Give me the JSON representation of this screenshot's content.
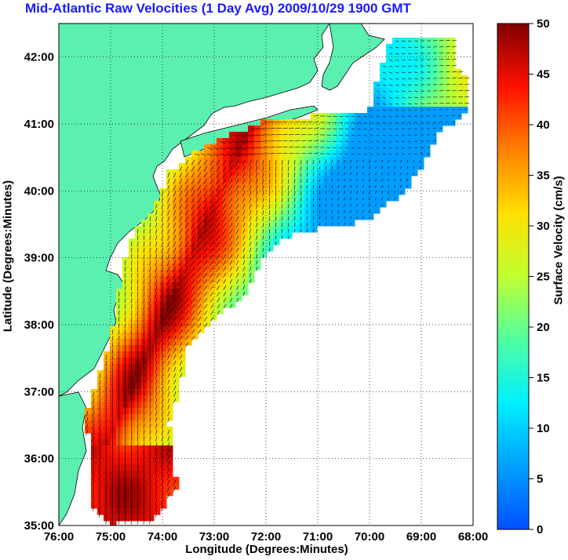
{
  "title": "Mid-Atlantic Raw Velocities (1 Day Avg) 2009/10/29 1900 GMT",
  "map": {
    "xlabel": "Longitude (Degrees:Minutes)",
    "ylabel": "Latitude (Degrees:Minutes)",
    "x_ticks": [
      "76:00",
      "75:00",
      "74:00",
      "73:00",
      "72:00",
      "71:00",
      "70:00",
      "69:00",
      "68:00"
    ],
    "y_ticks": [
      "35:00",
      "36:00",
      "37:00",
      "38:00",
      "39:00",
      "40:00",
      "41:00",
      "42:00"
    ],
    "lon_range": [
      -76,
      -68
    ],
    "lat_range": [
      35,
      42.5
    ],
    "land_color": "#5cf0b0",
    "grid": true
  },
  "colorbar": {
    "label": "Surface Velocity (cm/s)",
    "ticks": [
      "0",
      "5",
      "10",
      "15",
      "20",
      "25",
      "30",
      "35",
      "40",
      "45",
      "50"
    ],
    "min": 0,
    "max": 50,
    "colormap": "jet"
  }
}
